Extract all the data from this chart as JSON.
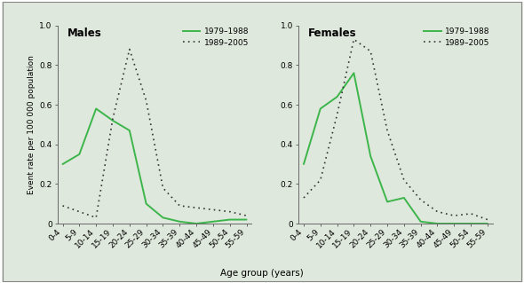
{
  "age_groups": [
    "0-4",
    "5-9",
    "10-14",
    "15-19",
    "20-24",
    "25-29",
    "30-34",
    "35-39",
    "40-44",
    "45-49",
    "50-54",
    "55-59"
  ],
  "males_green": [
    0.3,
    0.35,
    0.58,
    0.52,
    0.47,
    0.1,
    0.03,
    0.01,
    0.0,
    0.01,
    0.02,
    0.02
  ],
  "males_dotted": [
    0.09,
    0.06,
    0.03,
    0.53,
    0.88,
    0.62,
    0.18,
    0.09,
    0.08,
    0.07,
    0.06,
    0.04
  ],
  "females_green": [
    0.3,
    0.58,
    0.64,
    0.76,
    0.34,
    0.11,
    0.13,
    0.01,
    0.0,
    0.0,
    0.0,
    0.0
  ],
  "females_dotted": [
    0.13,
    0.22,
    0.55,
    0.93,
    0.87,
    0.47,
    0.22,
    0.12,
    0.06,
    0.04,
    0.05,
    0.02
  ],
  "green_color": "#3cb54a",
  "dotted_color": "#333333",
  "bg_color": "#dfe8dc",
  "panel_bg": "#dfe8dc",
  "border_color": "#888888",
  "title_males": "Males",
  "title_females": "Females",
  "legend_green": "1979–1988",
  "legend_dotted": "1989–2005",
  "ylabel": "Event rate per 100 000 population",
  "xlabel": "Age group (years)",
  "ylim": [
    0,
    1.0
  ],
  "yticks": [
    0,
    0.2,
    0.4,
    0.6,
    0.8,
    1.0
  ],
  "ytick_labels_left": [
    "0",
    "0.2",
    "0.4",
    "0.6",
    "0.8",
    "1.0"
  ],
  "ytick_labels_right": [
    "0",
    "0.2",
    "0.4",
    "0.6",
    "0.8",
    "1.0"
  ]
}
